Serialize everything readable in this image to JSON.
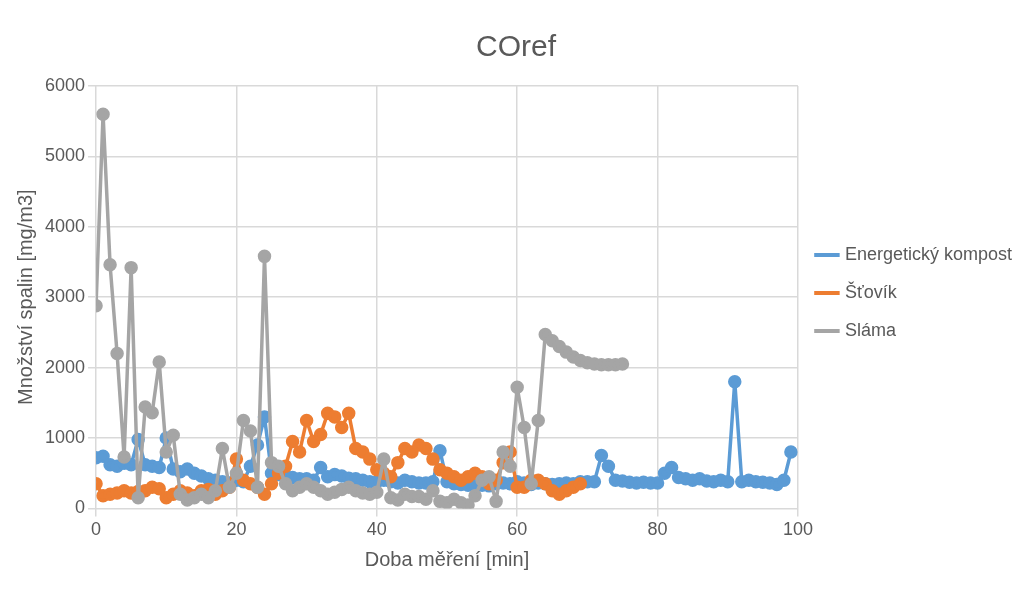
{
  "chart_data": {
    "type": "line",
    "title": "COref",
    "xlabel": "Doba měření [min]",
    "ylabel": "Množství spalin [mg/m3]",
    "xlim": [
      0,
      100
    ],
    "xticks": [
      0,
      20,
      40,
      60,
      80,
      100
    ],
    "ylim": [
      0,
      6000
    ],
    "yticks": [
      0,
      1000,
      2000,
      3000,
      4000,
      5000,
      6000
    ],
    "grid": true,
    "legend": "right",
    "marker": "circle",
    "line_style": "solid",
    "series": [
      {
        "name": "Energetický kompost",
        "color": "#5b9bd5",
        "x": [
          0,
          1,
          2,
          3,
          4,
          5,
          6,
          7,
          8,
          9,
          10,
          11,
          12,
          13,
          14,
          15,
          16,
          17,
          18,
          19,
          20,
          21,
          22,
          23,
          24,
          25,
          26,
          27,
          28,
          29,
          30,
          31,
          32,
          33,
          34,
          35,
          36,
          37,
          38,
          39,
          40,
          41,
          42,
          43,
          44,
          45,
          46,
          47,
          48,
          49,
          50,
          51,
          52,
          53,
          54,
          55,
          56,
          57,
          58,
          59,
          60,
          61,
          62,
          63,
          64,
          65,
          66,
          67,
          68,
          69,
          70,
          71,
          72,
          73,
          74,
          75,
          76,
          77,
          78,
          79,
          80,
          81,
          82,
          83,
          84,
          85,
          86,
          87,
          88,
          89,
          90,
          91,
          92,
          93,
          94,
          95,
          96,
          97,
          98,
          99
        ],
        "values": [
          720,
          740,
          620,
          600,
          640,
          620,
          980,
          620,
          600,
          580,
          1000,
          560,
          520,
          560,
          500,
          460,
          420,
          400,
          380,
          360,
          400,
          380,
          600,
          900,
          1300,
          500,
          480,
          460,
          440,
          420,
          420,
          400,
          580,
          450,
          480,
          460,
          430,
          420,
          400,
          380,
          380,
          400,
          380,
          360,
          400,
          380,
          360,
          360,
          380,
          820,
          380,
          350,
          340,
          330,
          340,
          330,
          320,
          350,
          360,
          350,
          380,
          360,
          340,
          360,
          350,
          340,
          350,
          360,
          350,
          380,
          380,
          380,
          750,
          600,
          400,
          390,
          370,
          360,
          370,
          360,
          360,
          500,
          580,
          440,
          420,
          400,
          420,
          390,
          380,
          400,
          380,
          1800,
          380,
          400,
          380,
          370,
          360,
          340,
          400,
          800
        ]
      },
      {
        "name": "Šťovík",
        "color": "#ed7d31",
        "x": [
          0,
          1,
          2,
          3,
          4,
          5,
          6,
          7,
          8,
          9,
          10,
          11,
          12,
          13,
          14,
          15,
          16,
          17,
          18,
          19,
          20,
          21,
          22,
          23,
          24,
          25,
          26,
          27,
          28,
          29,
          30,
          31,
          32,
          33,
          34,
          35,
          36,
          37,
          38,
          39,
          40,
          41,
          42,
          43,
          44,
          45,
          46,
          47,
          48,
          49,
          50,
          51,
          52,
          53,
          54,
          55,
          56,
          57,
          58,
          59,
          60,
          61,
          62,
          63,
          64,
          65,
          66,
          67,
          68,
          69
        ],
        "values": [
          350,
          180,
          200,
          220,
          250,
          220,
          240,
          250,
          300,
          280,
          150,
          200,
          250,
          220,
          180,
          250,
          270,
          200,
          250,
          300,
          700,
          400,
          350,
          300,
          200,
          350,
          500,
          600,
          950,
          800,
          1250,
          950,
          1050,
          1350,
          1300,
          1150,
          1350,
          850,
          800,
          700,
          550,
          500,
          450,
          650,
          850,
          800,
          900,
          850,
          700,
          550,
          500,
          450,
          400,
          450,
          500,
          450,
          350,
          400,
          650,
          800,
          300,
          300,
          400,
          400,
          350,
          250,
          200,
          250,
          300,
          350
        ]
      },
      {
        "name": "Sláma",
        "color": "#a5a5a5",
        "x": [
          0,
          1,
          2,
          3,
          4,
          5,
          6,
          7,
          8,
          9,
          10,
          11,
          12,
          13,
          14,
          15,
          16,
          17,
          18,
          19,
          20,
          21,
          22,
          23,
          24,
          25,
          26,
          27,
          28,
          29,
          30,
          31,
          32,
          33,
          34,
          35,
          36,
          37,
          38,
          39,
          40,
          41,
          42,
          43,
          44,
          45,
          46,
          47,
          48,
          49,
          50,
          51,
          52,
          53,
          54,
          55,
          56,
          57,
          58,
          59,
          60,
          61,
          62,
          63,
          64,
          65,
          66,
          67,
          68,
          69,
          70,
          71,
          72,
          73,
          74,
          75
        ],
        "values": [
          2880,
          5600,
          3460,
          2200,
          730,
          3420,
          150,
          1440,
          1360,
          2080,
          800,
          1040,
          200,
          120,
          150,
          200,
          150,
          250,
          850,
          300,
          500,
          1250,
          1100,
          300,
          3580,
          650,
          600,
          350,
          250,
          300,
          350,
          300,
          250,
          200,
          230,
          270,
          300,
          250,
          220,
          200,
          230,
          700,
          150,
          120,
          200,
          170,
          170,
          130,
          250,
          100,
          80,
          130,
          80,
          50,
          180,
          400,
          450,
          100,
          800,
          600,
          1720,
          1150,
          350,
          1250,
          2470,
          2380,
          2300,
          2220,
          2150,
          2100,
          2070,
          2050,
          2040,
          2040,
          2040,
          2050
        ]
      }
    ]
  }
}
